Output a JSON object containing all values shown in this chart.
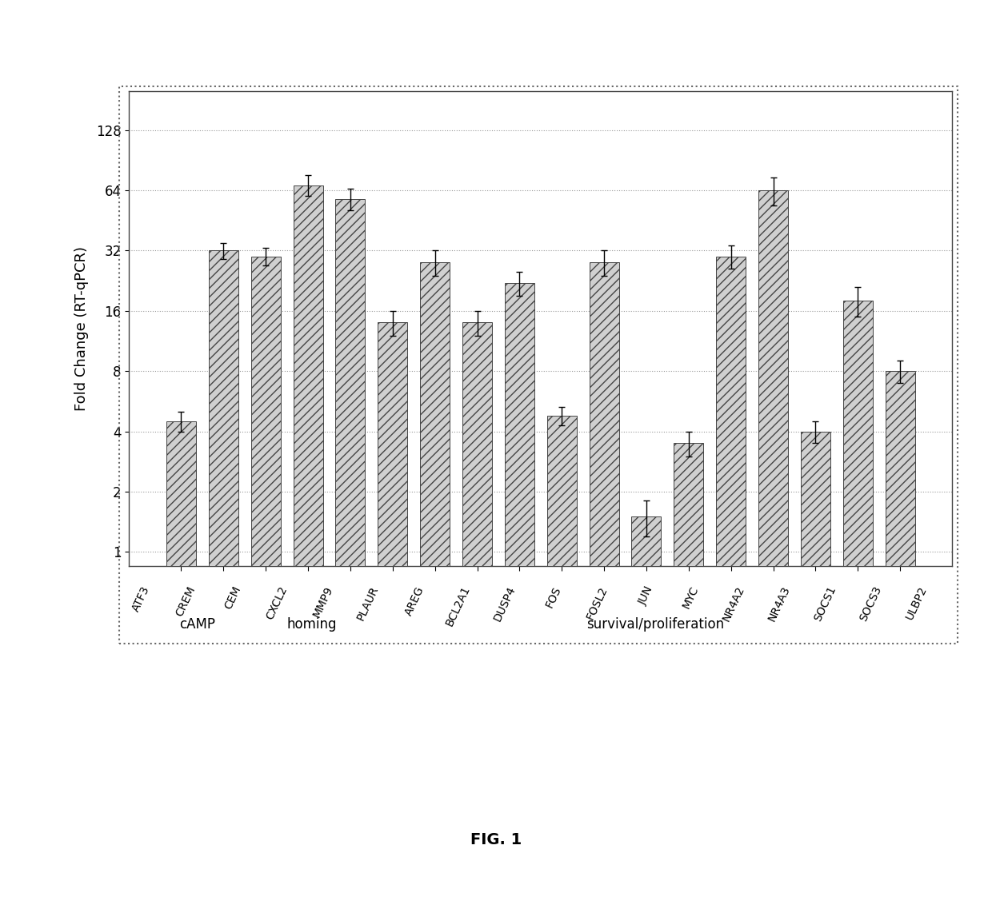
{
  "categories": [
    "ATF3",
    "CREM",
    "CEM",
    "CXCL2",
    "MMP9",
    "PLAUR",
    "AREG",
    "BCL2A1",
    "DUSP4",
    "FOS",
    "FOSL2",
    "JUN",
    "MYC",
    "NR4A2",
    "NR4A3",
    "SOCS1",
    "SOCS3",
    "ULBP2"
  ],
  "values": [
    4.5,
    32,
    30,
    68,
    58,
    14,
    28,
    14,
    22,
    4.8,
    28,
    1.5,
    3.5,
    30,
    64,
    4.0,
    18,
    8
  ],
  "errors": [
    0.5,
    3,
    3,
    8,
    7,
    2,
    4,
    2,
    3,
    0.5,
    4,
    0.3,
    0.5,
    4,
    10,
    0.5,
    3,
    1
  ],
  "groups": {
    "cAMP": [
      "ATF3",
      "CREM",
      "CEM"
    ],
    "homing": [
      "CXCL2",
      "MMP9"
    ],
    "survival/proliferation": [
      "PLAUR",
      "AREG",
      "BCL2A1",
      "DUSP4",
      "FOS",
      "FOSL2",
      "JUN",
      "MYC",
      "NR4A2",
      "NR4A3",
      "SOCS1",
      "SOCS3",
      "ULBP2"
    ]
  },
  "group_order": [
    "cAMP",
    "homing",
    "survival/proliferation"
  ],
  "ylabel": "Fold Change (RT-qPCR)",
  "yticks": [
    1,
    2,
    4,
    8,
    16,
    32,
    64,
    128
  ],
  "bar_color": "#d0d0d0",
  "bar_hatch": "///",
  "title": "FIG. 1",
  "background_color": "#ffffff",
  "grid_color": "#999999",
  "frame_color": "#888888"
}
